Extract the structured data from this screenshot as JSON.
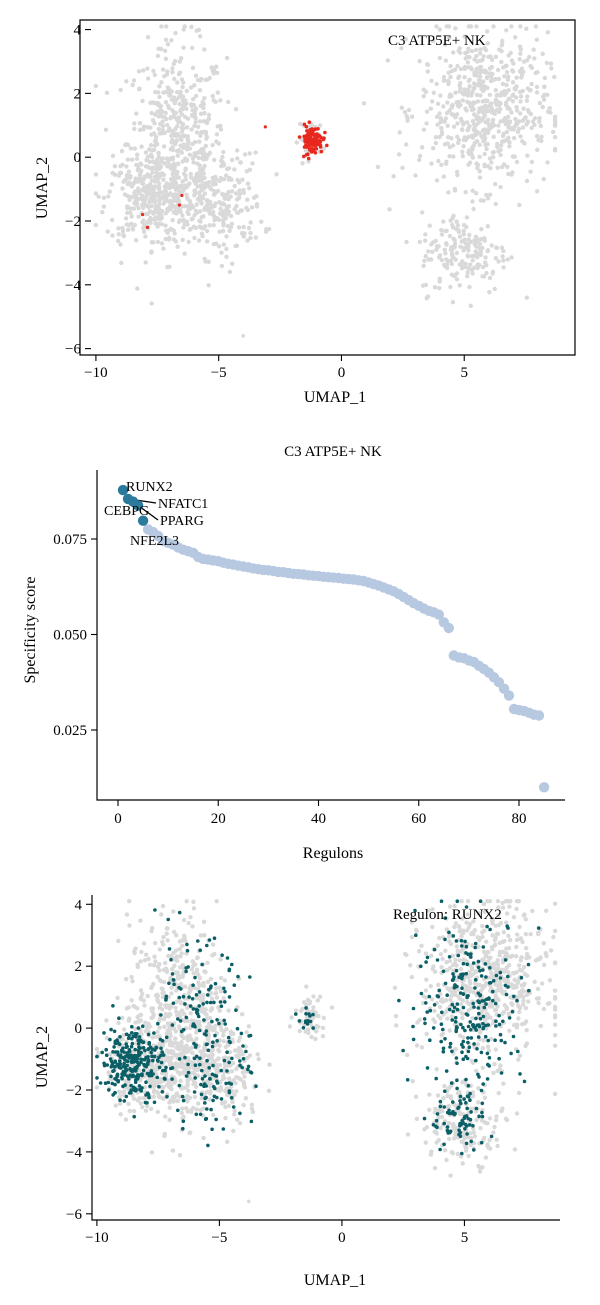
{
  "chart_data": [
    {
      "type": "scatter",
      "annotation": "C3 ATP5E+ NK",
      "xlabel": "UMAP_1",
      "ylabel": "UMAP_2",
      "xlim": [
        -10.2,
        8.9
      ],
      "ylim": [
        -6.2,
        4.3
      ],
      "xticks": [
        -10,
        -5,
        0,
        5
      ],
      "yticks": [
        4,
        2,
        0,
        -2,
        -4,
        -6
      ],
      "background_color": "#d9d9d9",
      "highlight_color": "#e8281e",
      "background_clusters": [
        {
          "cx": -6.7,
          "cy": 0.5,
          "sx": 1.0,
          "sy": 1.5,
          "n": 500
        },
        {
          "cx": -7.8,
          "cy": -1.3,
          "sx": 0.9,
          "sy": 0.7,
          "n": 300
        },
        {
          "cx": -5.0,
          "cy": -1.5,
          "sx": 0.9,
          "sy": 0.8,
          "n": 220
        },
        {
          "cx": -1.2,
          "cy": 0.6,
          "sx": 0.28,
          "sy": 0.28,
          "n": 40
        },
        {
          "cx": 5.8,
          "cy": 1.5,
          "sx": 1.3,
          "sy": 1.2,
          "n": 600
        },
        {
          "cx": 5.0,
          "cy": -3.0,
          "sx": 0.9,
          "sy": 0.65,
          "n": 180
        }
      ],
      "highlight_clusters": [
        {
          "cx": -1.2,
          "cy": 0.55,
          "sx": 0.22,
          "sy": 0.22,
          "n": 110
        }
      ],
      "highlight_points": [
        [
          -3.1,
          0.95
        ],
        [
          -6.5,
          -1.2
        ],
        [
          -7.9,
          -2.2
        ],
        [
          -8.1,
          -1.8
        ],
        [
          -6.6,
          -1.5
        ]
      ],
      "outliers": [
        [
          -4.0,
          -5.6
        ]
      ]
    },
    {
      "type": "scatter",
      "title": "C3 ATP5E+ NK",
      "xlabel": "Regulons",
      "ylabel": "Specificity score",
      "xlim": [
        -3,
        88
      ],
      "ylim": [
        0.007,
        0.092
      ],
      "xticks": [
        0,
        20,
        40,
        60,
        80
      ],
      "yticks": [
        0.075,
        0.05,
        0.025
      ],
      "ytick_labels": [
        "0.075",
        "0.050",
        "0.025"
      ],
      "top_color": "#2b7a9b",
      "rest_color": "#b7c8e1",
      "n_top": 5,
      "x": [
        1,
        2,
        3,
        4,
        5,
        6,
        7,
        8,
        9,
        10,
        11,
        12,
        13,
        14,
        15,
        16,
        17,
        18,
        19,
        20,
        21,
        22,
        23,
        24,
        25,
        26,
        27,
        28,
        29,
        30,
        31,
        32,
        33,
        34,
        35,
        36,
        37,
        38,
        39,
        40,
        41,
        42,
        43,
        44,
        45,
        46,
        47,
        48,
        49,
        50,
        51,
        52,
        53,
        54,
        55,
        56,
        57,
        58,
        59,
        60,
        61,
        62,
        63,
        64,
        65,
        66,
        67,
        68,
        69,
        70,
        71,
        72,
        73,
        74,
        75,
        76,
        77,
        78,
        79,
        80,
        81,
        82,
        83,
        84,
        85
      ],
      "y": [
        0.0878,
        0.0855,
        0.0848,
        0.0838,
        0.0798,
        0.0775,
        0.0768,
        0.0758,
        0.0745,
        0.074,
        0.0735,
        0.0728,
        0.0722,
        0.0718,
        0.0714,
        0.0703,
        0.0698,
        0.0696,
        0.0694,
        0.0692,
        0.0688,
        0.0685,
        0.0683,
        0.068,
        0.0678,
        0.0676,
        0.0673,
        0.0671,
        0.0669,
        0.0668,
        0.0666,
        0.0664,
        0.0663,
        0.0661,
        0.0659,
        0.0658,
        0.0657,
        0.0655,
        0.0654,
        0.0653,
        0.0651,
        0.065,
        0.0649,
        0.0648,
        0.0646,
        0.0645,
        0.0644,
        0.0642,
        0.064,
        0.0636,
        0.0632,
        0.0628,
        0.0623,
        0.0618,
        0.0613,
        0.0606,
        0.0598,
        0.059,
        0.0582,
        0.0575,
        0.0568,
        0.0562,
        0.0558,
        0.0552,
        0.0532,
        0.0517,
        0.0445,
        0.044,
        0.0438,
        0.0432,
        0.0428,
        0.0418,
        0.041,
        0.04,
        0.0388,
        0.0375,
        0.0358,
        0.034,
        0.0305,
        0.0302,
        0.03,
        0.0295,
        0.029,
        0.0288,
        0.01
      ],
      "labels": [
        {
          "text": "RUNX2",
          "index": 0
        },
        {
          "text": "NFATC1",
          "index": 1
        },
        {
          "text": "CEBPG",
          "index": 2
        },
        {
          "text": "PPARG",
          "index": 3
        },
        {
          "text": "NFE2L3",
          "index": 4
        }
      ]
    },
    {
      "type": "scatter",
      "annotation": "Regulon: RUNX2",
      "xlabel": "UMAP_1",
      "ylabel": "UMAP_2",
      "xlim": [
        -10.2,
        8.9
      ],
      "ylim": [
        -6.2,
        4.3
      ],
      "xticks": [
        -10,
        -5,
        0,
        5
      ],
      "yticks": [
        4,
        2,
        0,
        -2,
        -4,
        -6
      ],
      "background_color": "#d9d9d9",
      "highlight_color": "#0b5f66",
      "background_clusters": [
        {
          "cx": -6.7,
          "cy": 0.5,
          "sx": 1.0,
          "sy": 1.5,
          "n": 500
        },
        {
          "cx": -7.8,
          "cy": -1.3,
          "sx": 0.9,
          "sy": 0.7,
          "n": 300
        },
        {
          "cx": -5.0,
          "cy": -1.5,
          "sx": 0.9,
          "sy": 0.8,
          "n": 220
        },
        {
          "cx": -1.3,
          "cy": 0.45,
          "sx": 0.3,
          "sy": 0.35,
          "n": 60
        },
        {
          "cx": 5.8,
          "cy": 1.5,
          "sx": 1.3,
          "sy": 1.2,
          "n": 600
        },
        {
          "cx": 5.0,
          "cy": -3.0,
          "sx": 0.9,
          "sy": 0.65,
          "n": 180
        }
      ],
      "highlight_clusters": [
        {
          "cx": -8.6,
          "cy": -1.1,
          "sx": 0.6,
          "sy": 0.6,
          "n": 260
        },
        {
          "cx": -6.0,
          "cy": 0.1,
          "sx": 1.1,
          "sy": 1.3,
          "n": 140
        },
        {
          "cx": -5.2,
          "cy": -1.8,
          "sx": 0.8,
          "sy": 0.6,
          "n": 60
        },
        {
          "cx": -1.4,
          "cy": 0.3,
          "sx": 0.2,
          "sy": 0.2,
          "n": 14
        },
        {
          "cx": 5.3,
          "cy": 0.8,
          "sx": 1.1,
          "sy": 1.4,
          "n": 230
        },
        {
          "cx": 4.8,
          "cy": -3.0,
          "sx": 0.6,
          "sy": 0.5,
          "n": 70
        }
      ],
      "highlight_points": [],
      "outliers": [
        [
          -3.8,
          -5.6
        ]
      ]
    }
  ]
}
